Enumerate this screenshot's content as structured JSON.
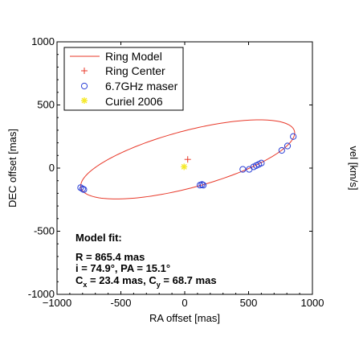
{
  "chart_data": {
    "type": "scatter",
    "xlabel": "RA offset [mas]",
    "ylabel": "DEC offset [mas]",
    "right_label": "vel [km/s]",
    "xlim": [
      -1000,
      1000
    ],
    "ylim": [
      -1000,
      1000
    ],
    "x_ticks": [
      -1000,
      -500,
      0,
      500,
      1000
    ],
    "x_tick_labels": [
      "−1000",
      "-500",
      "0",
      "500",
      "1000"
    ],
    "y_ticks": [
      -1000,
      -500,
      0,
      500,
      1000
    ],
    "y_tick_labels": [
      "-1000",
      "-500",
      "0",
      "500",
      "1000"
    ],
    "grid": false,
    "legend_position": "top-left",
    "legend": [
      {
        "label": "Ring Model",
        "marker": "line",
        "color": "#e8392a"
      },
      {
        "label": "Ring Center",
        "marker": "plus",
        "color": "#e8392a"
      },
      {
        "label": "6.7GHz maser",
        "marker": "circle",
        "color": "#2b3fd6"
      },
      {
        "label": "Curiel 2006",
        "marker": "star",
        "color": "#f5e92a"
      }
    ],
    "ring_model": {
      "radius": 865.4,
      "inclination_deg": 74.9,
      "position_angle_deg": 15.1,
      "center": [
        23.4,
        68.7
      ],
      "color": "#e8392a"
    },
    "ring_center": {
      "x": 23.4,
      "y": 68.7,
      "color": "#e8392a"
    },
    "curiel_2006": {
      "x": -5,
      "y": 10,
      "color": "#f5e92a"
    },
    "maser_points": [
      {
        "x": -815,
        "y": -155
      },
      {
        "x": -800,
        "y": -165
      },
      {
        "x": -790,
        "y": -170
      },
      {
        "x": 120,
        "y": -135
      },
      {
        "x": 135,
        "y": -130
      },
      {
        "x": 145,
        "y": -135
      },
      {
        "x": 455,
        "y": -10
      },
      {
        "x": 505,
        "y": -10
      },
      {
        "x": 540,
        "y": 10
      },
      {
        "x": 560,
        "y": 20
      },
      {
        "x": 580,
        "y": 30
      },
      {
        "x": 600,
        "y": 40
      },
      {
        "x": 760,
        "y": 140
      },
      {
        "x": 805,
        "y": 175
      },
      {
        "x": 850,
        "y": 250
      }
    ],
    "maser_color": "#2b3fd6",
    "annotation": {
      "heading": "Model fit:",
      "line1": "R = 865.4 mas",
      "line2": "i = 74.9°, PA = 15.1°",
      "line3_cx_prefix": "C",
      "line3_cx_sub": "x",
      "line3_cx_value": " = 23.4 mas, ",
      "line3_cy_prefix": "C",
      "line3_cy_sub": "y",
      "line3_cy_value": " = 68.7 mas"
    }
  }
}
